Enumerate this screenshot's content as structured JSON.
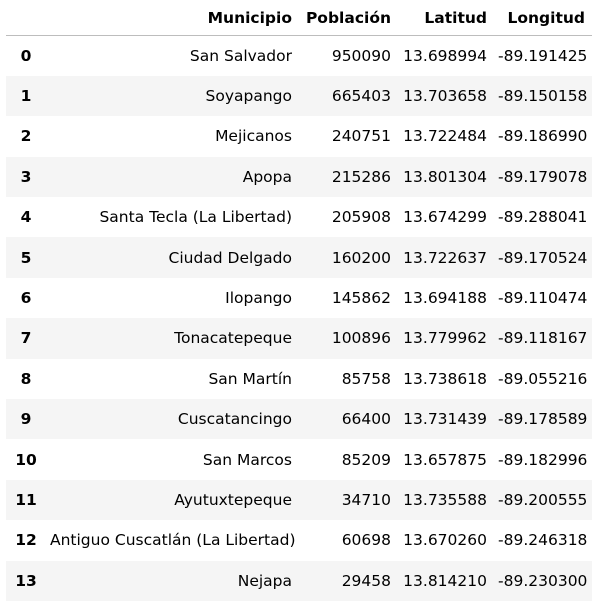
{
  "table": {
    "columns": [
      "",
      "Municipio",
      "Población",
      "Latitud",
      "Longitud"
    ],
    "rows": [
      {
        "index": "0",
        "municipio": "San Salvador",
        "poblacion": "950090",
        "latitud": "13.698994",
        "longitud": "-89.191425"
      },
      {
        "index": "1",
        "municipio": "Soyapango",
        "poblacion": "665403",
        "latitud": "13.703658",
        "longitud": "-89.150158"
      },
      {
        "index": "2",
        "municipio": "Mejicanos",
        "poblacion": "240751",
        "latitud": "13.722484",
        "longitud": "-89.186990"
      },
      {
        "index": "3",
        "municipio": "Apopa",
        "poblacion": "215286",
        "latitud": "13.801304",
        "longitud": "-89.179078"
      },
      {
        "index": "4",
        "municipio": "Santa Tecla (La Libertad)",
        "poblacion": "205908",
        "latitud": "13.674299",
        "longitud": "-89.288041"
      },
      {
        "index": "5",
        "municipio": "Ciudad Delgado",
        "poblacion": "160200",
        "latitud": "13.722637",
        "longitud": "-89.170524"
      },
      {
        "index": "6",
        "municipio": "Ilopango",
        "poblacion": "145862",
        "latitud": "13.694188",
        "longitud": "-89.110474"
      },
      {
        "index": "7",
        "municipio": "Tonacatepeque",
        "poblacion": "100896",
        "latitud": "13.779962",
        "longitud": "-89.118167"
      },
      {
        "index": "8",
        "municipio": "San Martín",
        "poblacion": "85758",
        "latitud": "13.738618",
        "longitud": "-89.055216"
      },
      {
        "index": "9",
        "municipio": "Cuscatancingo",
        "poblacion": "66400",
        "latitud": "13.731439",
        "longitud": "-89.178589"
      },
      {
        "index": "10",
        "municipio": "San Marcos",
        "poblacion": "85209",
        "latitud": "13.657875",
        "longitud": "-89.182996"
      },
      {
        "index": "11",
        "municipio": "Ayutuxtepeque",
        "poblacion": "34710",
        "latitud": "13.735588",
        "longitud": "-89.200555"
      },
      {
        "index": "12",
        "municipio": "Antiguo Cuscatlán (La Libertad)",
        "poblacion": "60698",
        "latitud": "13.670260",
        "longitud": "-89.246318"
      },
      {
        "index": "13",
        "municipio": "Nejapa",
        "poblacion": "29458",
        "latitud": "13.814210",
        "longitud": "-89.230300"
      }
    ]
  },
  "colors": {
    "row_stripe": "#f5f5f5",
    "header_border": "#bdbdbd",
    "text": "#000000"
  }
}
